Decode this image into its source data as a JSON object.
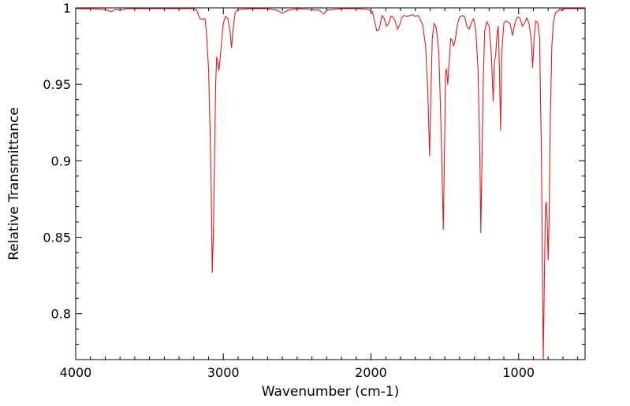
{
  "chart_data": {
    "type": "line",
    "title": "",
    "xlabel": "Wavenumber (cm-1)",
    "ylabel": "Relative Transmittance",
    "xlim": [
      4000,
      550
    ],
    "ylim": [
      0.77,
      1.0
    ],
    "x_reversed": true,
    "grid": false,
    "legend": "none",
    "x_ticks": [
      4000,
      3000,
      2000,
      1000
    ],
    "x_tick_labels": [
      "4000",
      "3000",
      "2000",
      "1000"
    ],
    "y_ticks": [
      0.8,
      0.85,
      0.9,
      0.95,
      1.0
    ],
    "y_tick_labels": [
      "0.8",
      "0.85",
      "0.9",
      "0.95",
      "1"
    ],
    "series": [
      {
        "color": "#e8191a",
        "points": [
          [
            4000,
            0.9995
          ],
          [
            3900,
            0.9994
          ],
          [
            3800,
            0.999
          ],
          [
            3760,
            0.9975
          ],
          [
            3730,
            0.999
          ],
          [
            3700,
            0.9985
          ],
          [
            3650,
            0.9995
          ],
          [
            3600,
            0.9995
          ],
          [
            3500,
            0.9995
          ],
          [
            3400,
            0.9995
          ],
          [
            3300,
            0.9995
          ],
          [
            3200,
            0.9995
          ],
          [
            3180,
            0.9985
          ],
          [
            3160,
            0.993
          ],
          [
            3140,
            0.9925
          ],
          [
            3125,
            0.993
          ],
          [
            3115,
            0.985
          ],
          [
            3100,
            0.96
          ],
          [
            3085,
            0.9
          ],
          [
            3075,
            0.827
          ],
          [
            3068,
            0.85
          ],
          [
            3060,
            0.9
          ],
          [
            3052,
            0.95
          ],
          [
            3045,
            0.968
          ],
          [
            3038,
            0.965
          ],
          [
            3030,
            0.959
          ],
          [
            3022,
            0.966
          ],
          [
            3012,
            0.978
          ],
          [
            3000,
            0.99
          ],
          [
            2985,
            0.9945
          ],
          [
            2970,
            0.993
          ],
          [
            2955,
            0.985
          ],
          [
            2945,
            0.974
          ],
          [
            2935,
            0.985
          ],
          [
            2920,
            0.997
          ],
          [
            2900,
            0.999
          ],
          [
            2800,
            0.9995
          ],
          [
            2700,
            0.9995
          ],
          [
            2640,
            0.9985
          ],
          [
            2600,
            0.9965
          ],
          [
            2560,
            0.9985
          ],
          [
            2500,
            0.9995
          ],
          [
            2350,
            0.9985
          ],
          [
            2320,
            0.996
          ],
          [
            2300,
            0.9985
          ],
          [
            2200,
            0.9995
          ],
          [
            2100,
            0.9995
          ],
          [
            2020,
            0.999
          ],
          [
            1990,
            0.9975
          ],
          [
            1975,
            0.991
          ],
          [
            1960,
            0.985
          ],
          [
            1945,
            0.986
          ],
          [
            1925,
            0.995
          ],
          [
            1910,
            0.993
          ],
          [
            1895,
            0.988
          ],
          [
            1880,
            0.99
          ],
          [
            1865,
            0.9945
          ],
          [
            1850,
            0.994
          ],
          [
            1835,
            0.991
          ],
          [
            1820,
            0.986
          ],
          [
            1805,
            0.989
          ],
          [
            1790,
            0.994
          ],
          [
            1775,
            0.995
          ],
          [
            1755,
            0.9945
          ],
          [
            1720,
            0.9955
          ],
          [
            1700,
            0.9945
          ],
          [
            1680,
            0.995
          ],
          [
            1650,
            0.989
          ],
          [
            1630,
            0.975
          ],
          [
            1615,
            0.945
          ],
          [
            1603,
            0.903
          ],
          [
            1595,
            0.94
          ],
          [
            1585,
            0.98
          ],
          [
            1572,
            0.99
          ],
          [
            1558,
            0.987
          ],
          [
            1540,
            0.97
          ],
          [
            1525,
            0.92
          ],
          [
            1510,
            0.855
          ],
          [
            1500,
            0.92
          ],
          [
            1495,
            0.958
          ],
          [
            1488,
            0.96
          ],
          [
            1480,
            0.95
          ],
          [
            1470,
            0.965
          ],
          [
            1460,
            0.98
          ],
          [
            1452,
            0.979
          ],
          [
            1440,
            0.975
          ],
          [
            1428,
            0.98
          ],
          [
            1415,
            0.989
          ],
          [
            1400,
            0.994
          ],
          [
            1380,
            0.995
          ],
          [
            1365,
            0.994
          ],
          [
            1350,
            0.988
          ],
          [
            1335,
            0.986
          ],
          [
            1320,
            0.99
          ],
          [
            1305,
            0.993
          ],
          [
            1290,
            0.985
          ],
          [
            1275,
            0.96
          ],
          [
            1262,
            0.9
          ],
          [
            1256,
            0.853
          ],
          [
            1248,
            0.9
          ],
          [
            1240,
            0.95
          ],
          [
            1230,
            0.985
          ],
          [
            1215,
            0.991
          ],
          [
            1200,
            0.988
          ],
          [
            1185,
            0.97
          ],
          [
            1172,
            0.939
          ],
          [
            1165,
            0.963
          ],
          [
            1155,
            0.97
          ],
          [
            1145,
            0.984
          ],
          [
            1138,
            0.988
          ],
          [
            1130,
            0.96
          ],
          [
            1122,
            0.92
          ],
          [
            1115,
            0.97
          ],
          [
            1100,
            0.99
          ],
          [
            1085,
            0.9915
          ],
          [
            1070,
            0.9905
          ],
          [
            1058,
            0.99
          ],
          [
            1042,
            0.982
          ],
          [
            1025,
            0.99
          ],
          [
            1012,
            0.9935
          ],
          [
            1000,
            0.994
          ],
          [
            990,
            0.993
          ],
          [
            975,
            0.988
          ],
          [
            960,
            0.99
          ],
          [
            945,
            0.9935
          ],
          [
            930,
            0.99
          ],
          [
            915,
            0.98
          ],
          [
            905,
            0.961
          ],
          [
            895,
            0.98
          ],
          [
            885,
            0.9915
          ],
          [
            870,
            0.99
          ],
          [
            858,
            0.98
          ],
          [
            845,
            0.9
          ],
          [
            838,
            0.82
          ],
          [
            833,
            0.77
          ],
          [
            826,
            0.82
          ],
          [
            818,
            0.87
          ],
          [
            812,
            0.873
          ],
          [
            806,
            0.86
          ],
          [
            800,
            0.835
          ],
          [
            794,
            0.86
          ],
          [
            785,
            0.93
          ],
          [
            775,
            0.975
          ],
          [
            765,
            0.99
          ],
          [
            750,
            0.997
          ],
          [
            730,
            0.998
          ],
          [
            720,
            0.9995
          ],
          [
            710,
            0.998
          ],
          [
            700,
            0.9995
          ],
          [
            690,
            0.9995
          ],
          [
            550,
            0.9995
          ]
        ]
      }
    ]
  }
}
